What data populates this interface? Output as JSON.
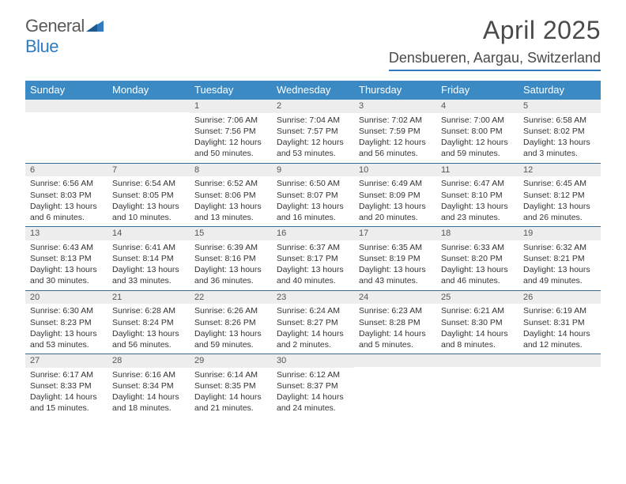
{
  "brand": {
    "part1": "General",
    "part2": "Blue"
  },
  "title": "April 2025",
  "location": "Densbueren, Aargau, Switzerland",
  "colors": {
    "header_bg": "#3b8ac4",
    "week_border": "#3b6d94",
    "daynum_bg": "#ededed",
    "title_color": "#4a4a4a",
    "brand_gray": "#5a5a5a",
    "brand_blue": "#2f7bbf"
  },
  "weekdays": [
    "Sunday",
    "Monday",
    "Tuesday",
    "Wednesday",
    "Thursday",
    "Friday",
    "Saturday"
  ],
  "weeks": [
    [
      {
        "day": "",
        "sunrise": "",
        "sunset": "",
        "daylight": ""
      },
      {
        "day": "",
        "sunrise": "",
        "sunset": "",
        "daylight": ""
      },
      {
        "day": "1",
        "sunrise": "Sunrise: 7:06 AM",
        "sunset": "Sunset: 7:56 PM",
        "daylight": "Daylight: 12 hours and 50 minutes."
      },
      {
        "day": "2",
        "sunrise": "Sunrise: 7:04 AM",
        "sunset": "Sunset: 7:57 PM",
        "daylight": "Daylight: 12 hours and 53 minutes."
      },
      {
        "day": "3",
        "sunrise": "Sunrise: 7:02 AM",
        "sunset": "Sunset: 7:59 PM",
        "daylight": "Daylight: 12 hours and 56 minutes."
      },
      {
        "day": "4",
        "sunrise": "Sunrise: 7:00 AM",
        "sunset": "Sunset: 8:00 PM",
        "daylight": "Daylight: 12 hours and 59 minutes."
      },
      {
        "day": "5",
        "sunrise": "Sunrise: 6:58 AM",
        "sunset": "Sunset: 8:02 PM",
        "daylight": "Daylight: 13 hours and 3 minutes."
      }
    ],
    [
      {
        "day": "6",
        "sunrise": "Sunrise: 6:56 AM",
        "sunset": "Sunset: 8:03 PM",
        "daylight": "Daylight: 13 hours and 6 minutes."
      },
      {
        "day": "7",
        "sunrise": "Sunrise: 6:54 AM",
        "sunset": "Sunset: 8:05 PM",
        "daylight": "Daylight: 13 hours and 10 minutes."
      },
      {
        "day": "8",
        "sunrise": "Sunrise: 6:52 AM",
        "sunset": "Sunset: 8:06 PM",
        "daylight": "Daylight: 13 hours and 13 minutes."
      },
      {
        "day": "9",
        "sunrise": "Sunrise: 6:50 AM",
        "sunset": "Sunset: 8:07 PM",
        "daylight": "Daylight: 13 hours and 16 minutes."
      },
      {
        "day": "10",
        "sunrise": "Sunrise: 6:49 AM",
        "sunset": "Sunset: 8:09 PM",
        "daylight": "Daylight: 13 hours and 20 minutes."
      },
      {
        "day": "11",
        "sunrise": "Sunrise: 6:47 AM",
        "sunset": "Sunset: 8:10 PM",
        "daylight": "Daylight: 13 hours and 23 minutes."
      },
      {
        "day": "12",
        "sunrise": "Sunrise: 6:45 AM",
        "sunset": "Sunset: 8:12 PM",
        "daylight": "Daylight: 13 hours and 26 minutes."
      }
    ],
    [
      {
        "day": "13",
        "sunrise": "Sunrise: 6:43 AM",
        "sunset": "Sunset: 8:13 PM",
        "daylight": "Daylight: 13 hours and 30 minutes."
      },
      {
        "day": "14",
        "sunrise": "Sunrise: 6:41 AM",
        "sunset": "Sunset: 8:14 PM",
        "daylight": "Daylight: 13 hours and 33 minutes."
      },
      {
        "day": "15",
        "sunrise": "Sunrise: 6:39 AM",
        "sunset": "Sunset: 8:16 PM",
        "daylight": "Daylight: 13 hours and 36 minutes."
      },
      {
        "day": "16",
        "sunrise": "Sunrise: 6:37 AM",
        "sunset": "Sunset: 8:17 PM",
        "daylight": "Daylight: 13 hours and 40 minutes."
      },
      {
        "day": "17",
        "sunrise": "Sunrise: 6:35 AM",
        "sunset": "Sunset: 8:19 PM",
        "daylight": "Daylight: 13 hours and 43 minutes."
      },
      {
        "day": "18",
        "sunrise": "Sunrise: 6:33 AM",
        "sunset": "Sunset: 8:20 PM",
        "daylight": "Daylight: 13 hours and 46 minutes."
      },
      {
        "day": "19",
        "sunrise": "Sunrise: 6:32 AM",
        "sunset": "Sunset: 8:21 PM",
        "daylight": "Daylight: 13 hours and 49 minutes."
      }
    ],
    [
      {
        "day": "20",
        "sunrise": "Sunrise: 6:30 AM",
        "sunset": "Sunset: 8:23 PM",
        "daylight": "Daylight: 13 hours and 53 minutes."
      },
      {
        "day": "21",
        "sunrise": "Sunrise: 6:28 AM",
        "sunset": "Sunset: 8:24 PM",
        "daylight": "Daylight: 13 hours and 56 minutes."
      },
      {
        "day": "22",
        "sunrise": "Sunrise: 6:26 AM",
        "sunset": "Sunset: 8:26 PM",
        "daylight": "Daylight: 13 hours and 59 minutes."
      },
      {
        "day": "23",
        "sunrise": "Sunrise: 6:24 AM",
        "sunset": "Sunset: 8:27 PM",
        "daylight": "Daylight: 14 hours and 2 minutes."
      },
      {
        "day": "24",
        "sunrise": "Sunrise: 6:23 AM",
        "sunset": "Sunset: 8:28 PM",
        "daylight": "Daylight: 14 hours and 5 minutes."
      },
      {
        "day": "25",
        "sunrise": "Sunrise: 6:21 AM",
        "sunset": "Sunset: 8:30 PM",
        "daylight": "Daylight: 14 hours and 8 minutes."
      },
      {
        "day": "26",
        "sunrise": "Sunrise: 6:19 AM",
        "sunset": "Sunset: 8:31 PM",
        "daylight": "Daylight: 14 hours and 12 minutes."
      }
    ],
    [
      {
        "day": "27",
        "sunrise": "Sunrise: 6:17 AM",
        "sunset": "Sunset: 8:33 PM",
        "daylight": "Daylight: 14 hours and 15 minutes."
      },
      {
        "day": "28",
        "sunrise": "Sunrise: 6:16 AM",
        "sunset": "Sunset: 8:34 PM",
        "daylight": "Daylight: 14 hours and 18 minutes."
      },
      {
        "day": "29",
        "sunrise": "Sunrise: 6:14 AM",
        "sunset": "Sunset: 8:35 PM",
        "daylight": "Daylight: 14 hours and 21 minutes."
      },
      {
        "day": "30",
        "sunrise": "Sunrise: 6:12 AM",
        "sunset": "Sunset: 8:37 PM",
        "daylight": "Daylight: 14 hours and 24 minutes."
      },
      {
        "day": "",
        "sunrise": "",
        "sunset": "",
        "daylight": ""
      },
      {
        "day": "",
        "sunrise": "",
        "sunset": "",
        "daylight": ""
      },
      {
        "day": "",
        "sunrise": "",
        "sunset": "",
        "daylight": ""
      }
    ]
  ]
}
